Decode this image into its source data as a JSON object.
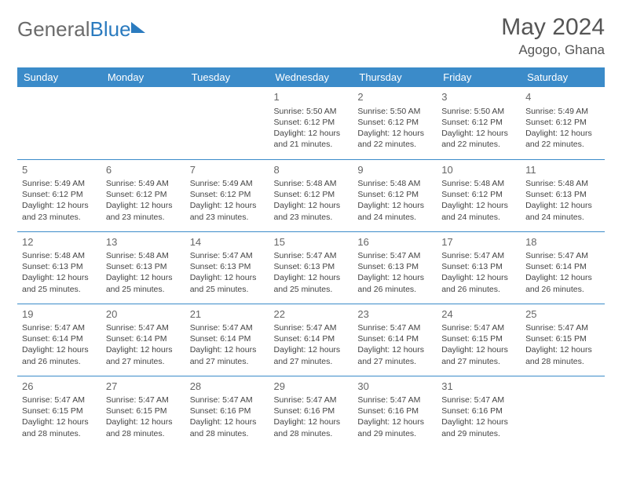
{
  "logo": {
    "word1": "General",
    "word2": "Blue"
  },
  "title": "May 2024",
  "location": "Agogo, Ghana",
  "weekdays": [
    "Sunday",
    "Monday",
    "Tuesday",
    "Wednesday",
    "Thursday",
    "Friday",
    "Saturday"
  ],
  "header_bg": "#3b8bc9",
  "header_fg": "#ffffff",
  "cell_border": "#3b8bc9",
  "weeks": [
    [
      {
        "day": "",
        "sunrise": "",
        "sunset": "",
        "daylight": ""
      },
      {
        "day": "",
        "sunrise": "",
        "sunset": "",
        "daylight": ""
      },
      {
        "day": "",
        "sunrise": "",
        "sunset": "",
        "daylight": ""
      },
      {
        "day": "1",
        "sunrise": "Sunrise: 5:50 AM",
        "sunset": "Sunset: 6:12 PM",
        "daylight": "Daylight: 12 hours and 21 minutes."
      },
      {
        "day": "2",
        "sunrise": "Sunrise: 5:50 AM",
        "sunset": "Sunset: 6:12 PM",
        "daylight": "Daylight: 12 hours and 22 minutes."
      },
      {
        "day": "3",
        "sunrise": "Sunrise: 5:50 AM",
        "sunset": "Sunset: 6:12 PM",
        "daylight": "Daylight: 12 hours and 22 minutes."
      },
      {
        "day": "4",
        "sunrise": "Sunrise: 5:49 AM",
        "sunset": "Sunset: 6:12 PM",
        "daylight": "Daylight: 12 hours and 22 minutes."
      }
    ],
    [
      {
        "day": "5",
        "sunrise": "Sunrise: 5:49 AM",
        "sunset": "Sunset: 6:12 PM",
        "daylight": "Daylight: 12 hours and 23 minutes."
      },
      {
        "day": "6",
        "sunrise": "Sunrise: 5:49 AM",
        "sunset": "Sunset: 6:12 PM",
        "daylight": "Daylight: 12 hours and 23 minutes."
      },
      {
        "day": "7",
        "sunrise": "Sunrise: 5:49 AM",
        "sunset": "Sunset: 6:12 PM",
        "daylight": "Daylight: 12 hours and 23 minutes."
      },
      {
        "day": "8",
        "sunrise": "Sunrise: 5:48 AM",
        "sunset": "Sunset: 6:12 PM",
        "daylight": "Daylight: 12 hours and 23 minutes."
      },
      {
        "day": "9",
        "sunrise": "Sunrise: 5:48 AM",
        "sunset": "Sunset: 6:12 PM",
        "daylight": "Daylight: 12 hours and 24 minutes."
      },
      {
        "day": "10",
        "sunrise": "Sunrise: 5:48 AM",
        "sunset": "Sunset: 6:12 PM",
        "daylight": "Daylight: 12 hours and 24 minutes."
      },
      {
        "day": "11",
        "sunrise": "Sunrise: 5:48 AM",
        "sunset": "Sunset: 6:13 PM",
        "daylight": "Daylight: 12 hours and 24 minutes."
      }
    ],
    [
      {
        "day": "12",
        "sunrise": "Sunrise: 5:48 AM",
        "sunset": "Sunset: 6:13 PM",
        "daylight": "Daylight: 12 hours and 25 minutes."
      },
      {
        "day": "13",
        "sunrise": "Sunrise: 5:48 AM",
        "sunset": "Sunset: 6:13 PM",
        "daylight": "Daylight: 12 hours and 25 minutes."
      },
      {
        "day": "14",
        "sunrise": "Sunrise: 5:47 AM",
        "sunset": "Sunset: 6:13 PM",
        "daylight": "Daylight: 12 hours and 25 minutes."
      },
      {
        "day": "15",
        "sunrise": "Sunrise: 5:47 AM",
        "sunset": "Sunset: 6:13 PM",
        "daylight": "Daylight: 12 hours and 25 minutes."
      },
      {
        "day": "16",
        "sunrise": "Sunrise: 5:47 AM",
        "sunset": "Sunset: 6:13 PM",
        "daylight": "Daylight: 12 hours and 26 minutes."
      },
      {
        "day": "17",
        "sunrise": "Sunrise: 5:47 AM",
        "sunset": "Sunset: 6:13 PM",
        "daylight": "Daylight: 12 hours and 26 minutes."
      },
      {
        "day": "18",
        "sunrise": "Sunrise: 5:47 AM",
        "sunset": "Sunset: 6:14 PM",
        "daylight": "Daylight: 12 hours and 26 minutes."
      }
    ],
    [
      {
        "day": "19",
        "sunrise": "Sunrise: 5:47 AM",
        "sunset": "Sunset: 6:14 PM",
        "daylight": "Daylight: 12 hours and 26 minutes."
      },
      {
        "day": "20",
        "sunrise": "Sunrise: 5:47 AM",
        "sunset": "Sunset: 6:14 PM",
        "daylight": "Daylight: 12 hours and 27 minutes."
      },
      {
        "day": "21",
        "sunrise": "Sunrise: 5:47 AM",
        "sunset": "Sunset: 6:14 PM",
        "daylight": "Daylight: 12 hours and 27 minutes."
      },
      {
        "day": "22",
        "sunrise": "Sunrise: 5:47 AM",
        "sunset": "Sunset: 6:14 PM",
        "daylight": "Daylight: 12 hours and 27 minutes."
      },
      {
        "day": "23",
        "sunrise": "Sunrise: 5:47 AM",
        "sunset": "Sunset: 6:14 PM",
        "daylight": "Daylight: 12 hours and 27 minutes."
      },
      {
        "day": "24",
        "sunrise": "Sunrise: 5:47 AM",
        "sunset": "Sunset: 6:15 PM",
        "daylight": "Daylight: 12 hours and 27 minutes."
      },
      {
        "day": "25",
        "sunrise": "Sunrise: 5:47 AM",
        "sunset": "Sunset: 6:15 PM",
        "daylight": "Daylight: 12 hours and 28 minutes."
      }
    ],
    [
      {
        "day": "26",
        "sunrise": "Sunrise: 5:47 AM",
        "sunset": "Sunset: 6:15 PM",
        "daylight": "Daylight: 12 hours and 28 minutes."
      },
      {
        "day": "27",
        "sunrise": "Sunrise: 5:47 AM",
        "sunset": "Sunset: 6:15 PM",
        "daylight": "Daylight: 12 hours and 28 minutes."
      },
      {
        "day": "28",
        "sunrise": "Sunrise: 5:47 AM",
        "sunset": "Sunset: 6:16 PM",
        "daylight": "Daylight: 12 hours and 28 minutes."
      },
      {
        "day": "29",
        "sunrise": "Sunrise: 5:47 AM",
        "sunset": "Sunset: 6:16 PM",
        "daylight": "Daylight: 12 hours and 28 minutes."
      },
      {
        "day": "30",
        "sunrise": "Sunrise: 5:47 AM",
        "sunset": "Sunset: 6:16 PM",
        "daylight": "Daylight: 12 hours and 29 minutes."
      },
      {
        "day": "31",
        "sunrise": "Sunrise: 5:47 AM",
        "sunset": "Sunset: 6:16 PM",
        "daylight": "Daylight: 12 hours and 29 minutes."
      },
      {
        "day": "",
        "sunrise": "",
        "sunset": "",
        "daylight": ""
      }
    ]
  ]
}
